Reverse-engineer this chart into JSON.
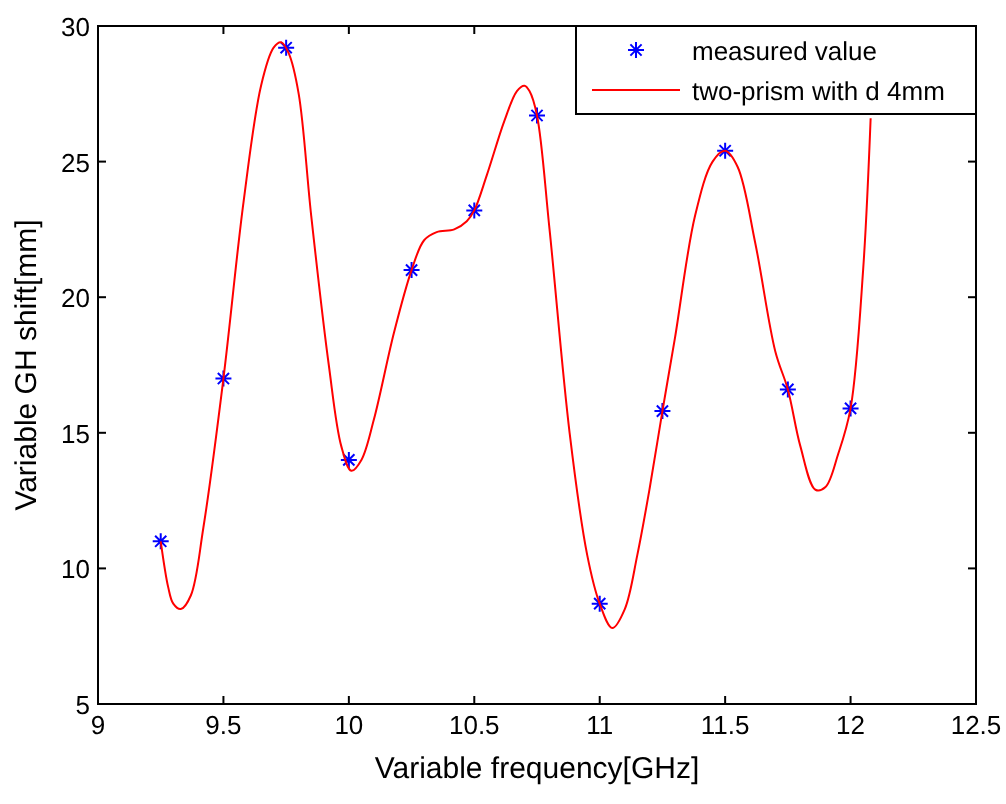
{
  "chart_data": {
    "type": "scatter",
    "xlabel": "Variable frequency[GHz]",
    "ylabel": "Variable GH shift[mm]",
    "xlim": [
      9,
      12.5
    ],
    "ylim": [
      5,
      30
    ],
    "xticks": [
      9,
      9.5,
      10,
      10.5,
      11,
      11.5,
      12,
      12.5
    ],
    "yticks": [
      5,
      10,
      15,
      20,
      25,
      30
    ],
    "grid": false,
    "legend": "top right",
    "series": [
      {
        "name": "measured value",
        "marker": "cross",
        "color": "#0000ff",
        "x": [
          9.25,
          9.5,
          9.75,
          10,
          10.25,
          10.5,
          10.75,
          11,
          11.25,
          11.5,
          11.75,
          12
        ],
        "values": [
          11,
          17,
          29.2,
          14,
          21,
          23.2,
          26.7,
          8.7,
          15.8,
          25.4,
          16.6,
          15.9
        ]
      },
      {
        "name": "two-prism with d 4mm",
        "type": "line",
        "marker": "none",
        "line_style": "solid",
        "color": "#ff0000",
        "x": [
          9.25,
          9.28,
          9.3,
          9.33,
          9.37,
          9.42,
          9.5,
          9.58,
          9.65,
          9.7,
          9.73,
          9.76,
          9.8,
          9.85,
          9.92,
          9.97,
          10.01,
          10.05,
          10.1,
          10.18,
          10.25,
          10.3,
          10.35,
          10.42,
          10.47,
          10.5,
          10.55,
          10.62,
          10.67,
          10.7,
          10.72,
          10.75,
          10.8,
          10.88,
          10.95,
          11,
          11.05,
          11.1,
          11.15,
          11.2,
          11.25,
          11.3,
          11.38,
          11.45,
          11.5,
          11.55,
          11.62,
          11.7,
          11.75,
          11.8,
          11.86,
          11.9,
          11.95,
          12,
          12.05,
          12.08
        ],
        "values": [
          11,
          9.3,
          8.7,
          8.5,
          9,
          11.5,
          17,
          23.5,
          27.8,
          29.2,
          29.4,
          29,
          27.5,
          23,
          17.5,
          14.5,
          13.6,
          14,
          15.5,
          18.7,
          21,
          22.1,
          22.4,
          22.5,
          22.8,
          23.2,
          24.5,
          26.5,
          27.6,
          27.8,
          27.6,
          26.7,
          22.5,
          15,
          10.5,
          8.7,
          7.8,
          8.5,
          10.5,
          13,
          15.8,
          18.5,
          23,
          25,
          25.4,
          24.8,
          22,
          18,
          16.6,
          14.5,
          12.9,
          13,
          14.2,
          15.9,
          21,
          26.6
        ]
      }
    ]
  }
}
